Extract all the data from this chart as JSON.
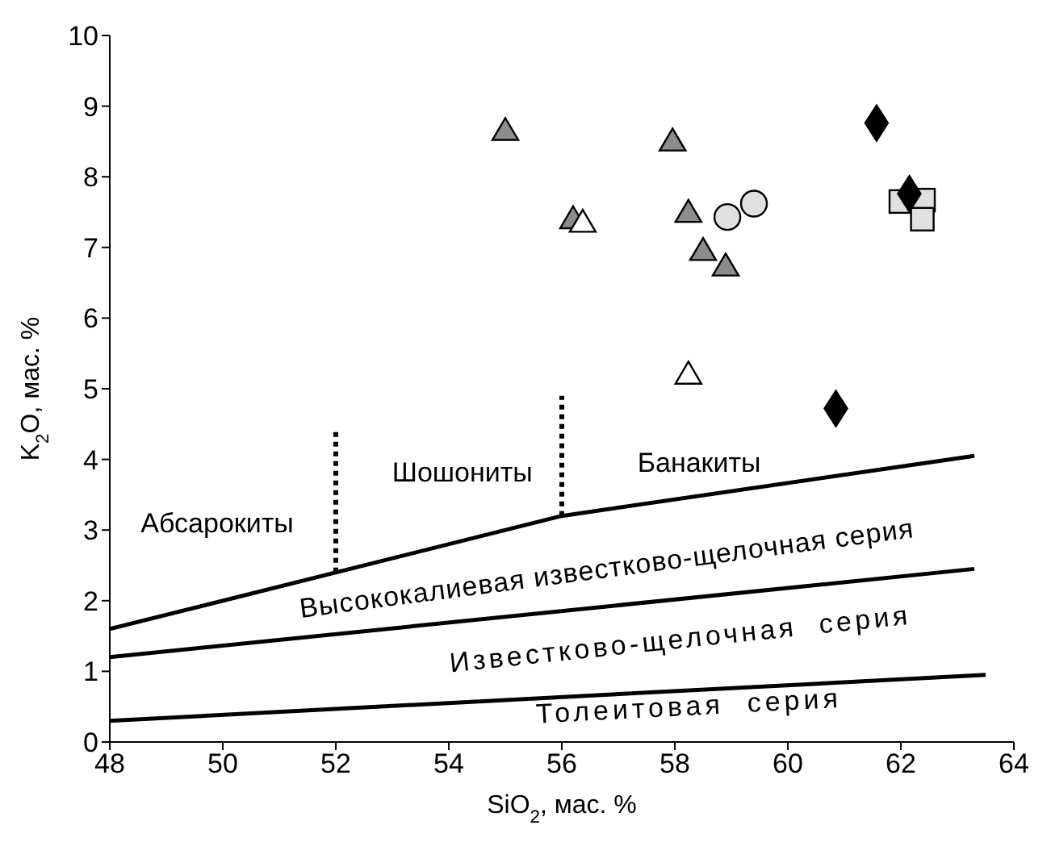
{
  "chart_data": {
    "type": "scatter",
    "xlabel": "SiO$_{2}$, мас. %",
    "ylabel": "K$_{2}$O, мас. %",
    "xlim": [
      48,
      64
    ],
    "xticks": [
      48,
      50,
      52,
      54,
      56,
      58,
      60,
      62,
      64
    ],
    "ylim": [
      0,
      10
    ],
    "yticks": [
      0,
      1,
      2,
      3,
      4,
      5,
      6,
      7,
      8,
      9,
      10
    ],
    "series": [
      {
        "type": "line",
        "color": "#000000",
        "marker": "none",
        "line_style": "solid",
        "x": [
          48,
          56,
          63.3
        ],
        "values": [
          1.6,
          3.2,
          4.05
        ]
      },
      {
        "type": "line",
        "color": "#000000",
        "marker": "none",
        "line_style": "solid",
        "x": [
          48,
          63.3
        ],
        "values": [
          1.2,
          2.45
        ]
      },
      {
        "type": "line",
        "color": "#000000",
        "marker": "none",
        "line_style": "solid",
        "x": [
          48,
          63.5
        ],
        "values": [
          0.3,
          0.95
        ]
      },
      {
        "type": "line",
        "color": "#000000",
        "marker": "none",
        "line_style": "dotted",
        "x": [
          52,
          52
        ],
        "values": [
          2.4,
          4.45
        ]
      },
      {
        "type": "line",
        "color": "#000000",
        "marker": "none",
        "line_style": "dotted",
        "x": [
          56,
          56
        ],
        "values": [
          3.2,
          4.9
        ]
      },
      {
        "color": "#8c8c8c",
        "marker": "triangle",
        "x": [
          55,
          57.96,
          58.24,
          58.5,
          58.9,
          56.2
        ],
        "values": [
          8.65,
          8.5,
          7.49,
          6.95,
          6.73,
          7.4
        ]
      },
      {
        "color": "#ffffff",
        "marker": "triangle",
        "x": [
          56.37,
          58.24
        ],
        "values": [
          7.35,
          5.2
        ]
      },
      {
        "color": "#e0e0e0",
        "marker": "circle",
        "x": [
          58.93,
          59.4
        ],
        "values": [
          7.43,
          7.62
        ]
      },
      {
        "color": "#e0e0e0",
        "marker": "square",
        "x": [
          62,
          62.4,
          62.38
        ],
        "values": [
          7.65,
          7.67,
          7.4
        ]
      },
      {
        "color": "#000000",
        "marker": "diamond",
        "x": [
          61.57,
          62.15,
          60.85
        ],
        "values": [
          8.76,
          7.76,
          4.72
        ]
      }
    ],
    "annotations": [
      "Абсарокиты",
      "Шошониты",
      "Банакиты",
      "Высококалиевая известково-щелочная серия",
      "Известково-щелочная  серия",
      "Толеитовая  серия"
    ]
  }
}
